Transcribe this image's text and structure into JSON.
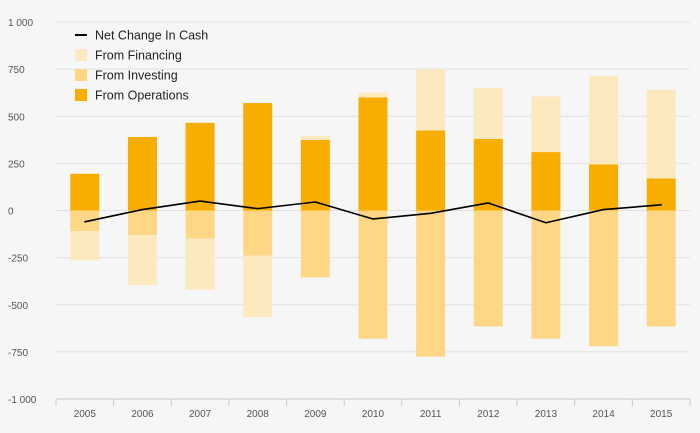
{
  "chart_data": {
    "type": "bar",
    "stacked": true,
    "categories": [
      "2005",
      "2006",
      "2007",
      "2008",
      "2009",
      "2010",
      "2011",
      "2012",
      "2013",
      "2014",
      "2015"
    ],
    "ylim": [
      -1000,
      1000
    ],
    "yticks": [
      1000,
      750,
      500,
      250,
      0,
      -250,
      -500,
      -750,
      -1000
    ],
    "ytick_labels": [
      "1 000",
      "750",
      "500",
      "250",
      "0",
      "-250",
      "-500",
      "-750",
      "-1 000"
    ],
    "legend_position": "top-left",
    "grid": true,
    "series": [
      {
        "name": "From Operations",
        "kind": "bar",
        "color": "#f7ae00",
        "values": [
          195,
          390,
          465,
          570,
          375,
          600,
          425,
          380,
          310,
          245,
          170
        ]
      },
      {
        "name": "From Investing",
        "kind": "bar",
        "color": "#fdd785",
        "values": [
          -110,
          -130,
          -150,
          -240,
          -355,
          -680,
          -775,
          -615,
          -680,
          -720,
          -615
        ]
      },
      {
        "name": "From Financing",
        "kind": "bar",
        "color": "#fde9c0",
        "values": [
          -155,
          -265,
          -270,
          -325,
          20,
          25,
          325,
          270,
          295,
          470,
          470
        ]
      },
      {
        "name": "Net Change In Cash",
        "kind": "line",
        "color": "#000000",
        "values": [
          -60,
          5,
          50,
          10,
          45,
          -45,
          -15,
          40,
          -65,
          5,
          30
        ]
      }
    ],
    "legend_order": [
      "Net Change In Cash",
      "From Financing",
      "From Investing",
      "From Operations"
    ]
  }
}
